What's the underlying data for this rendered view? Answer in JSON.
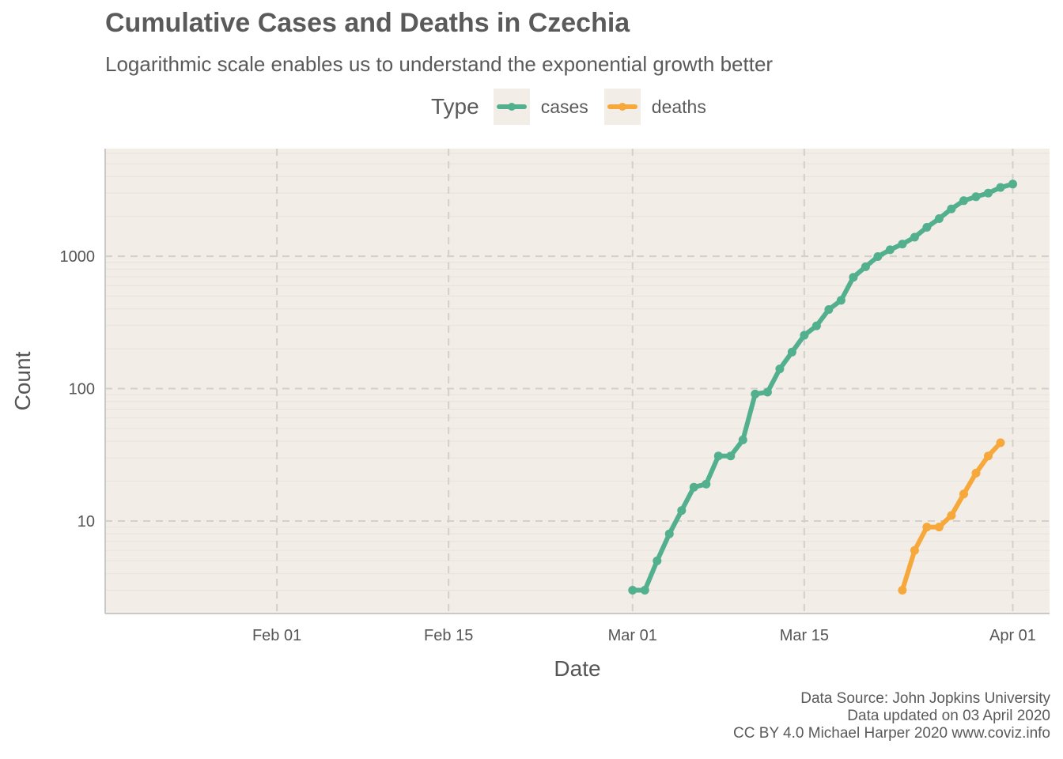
{
  "title": "Cumulative Cases and Deaths in Czechia",
  "subtitle": "Logarithmic scale enables us to understand the exponential growth better",
  "legend": {
    "title": "Type",
    "items": [
      {
        "label": "cases",
        "color": "#52b08f"
      },
      {
        "label": "deaths",
        "color": "#f6a83b"
      }
    ]
  },
  "caption": {
    "line1": "Data Source: John Jopkins University",
    "line2": "Data updated on 03 April 2020",
    "line3": "CC BY 4.0 Michael Harper 2020 www.coviz.info"
  },
  "colors": {
    "panel_bg": "#f3ede7",
    "grid_major": "#d2cfcc",
    "cases": "#52b08f",
    "deaths": "#f6a83b"
  },
  "chart_data": {
    "type": "line",
    "log_y": true,
    "xlabel": "Date",
    "ylabel": "Count",
    "x_ticks": [
      "2020-02-01",
      "2020-02-15",
      "2020-03-01",
      "2020-03-15",
      "2020-04-01"
    ],
    "x_tick_labels": [
      "Feb 01",
      "Feb 15",
      "Mar 01",
      "Mar 15",
      "Apr 01"
    ],
    "y_ticks": [
      10,
      100,
      1000
    ],
    "y_tick_labels": [
      "10",
      "100",
      "1000"
    ],
    "xlim": [
      "2020-01-18",
      "2020-04-04"
    ],
    "ylim": [
      2,
      6500
    ],
    "grid": true,
    "legend_position": "top",
    "series": [
      {
        "name": "cases",
        "color": "#52b08f",
        "start_date": "2020-03-01",
        "values": [
          3,
          3,
          5,
          8,
          12,
          18,
          19,
          31,
          31,
          41,
          91,
          94,
          141,
          189,
          253,
          298,
          396,
          464,
          694,
          833,
          995,
          1120,
          1236,
          1394,
          1654,
          1925,
          2279,
          2631,
          2817,
          3001,
          3308,
          3508
        ]
      },
      {
        "name": "deaths",
        "color": "#f6a83b",
        "start_date": "2020-03-23",
        "values": [
          3,
          6,
          9,
          9,
          11,
          16,
          23,
          31,
          39
        ]
      }
    ]
  }
}
